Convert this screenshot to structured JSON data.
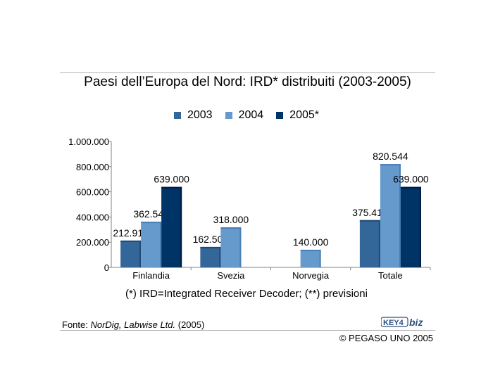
{
  "title": "Paesi dell’Europa del Nord: IRD* distribuiti (2003-2005)",
  "note": "(*) IRD=Integrated Receiver Decoder; (**) previsioni",
  "source": {
    "prefix": "Fonte: ",
    "italic": "NorDig, Labwise Ltd.",
    "suffix": " (2005)"
  },
  "logo_text": "KEY4biz",
  "copyright": "© PEGASO UNO 2005",
  "colors": {
    "s2003": "#336699",
    "s2004": "#6699cc",
    "s2005": "#003366",
    "axis": "#808080",
    "rule": "#b3b3b3"
  },
  "chart_data": {
    "type": "bar",
    "title": "Paesi dell’Europa del Nord: IRD* distribuiti (2003-2005)",
    "categories": [
      "Finlandia",
      "Svezia",
      "Norvegia",
      "Totale"
    ],
    "series": [
      {
        "name": "2003",
        "values": [
          212917,
          162500,
          null,
          375417
        ],
        "labels": [
          "212.917",
          "162.500",
          "",
          "375.417"
        ]
      },
      {
        "name": "2004",
        "values": [
          362544,
          318000,
          140000,
          820544
        ],
        "labels": [
          "362.544",
          "318.000",
          "140.000",
          "820.544"
        ]
      },
      {
        "name": "2005*",
        "values": [
          639000,
          null,
          null,
          639000
        ],
        "labels": [
          "639.000",
          "",
          "",
          "639.000"
        ]
      }
    ],
    "ylim": [
      0,
      1000000
    ],
    "yticks": [
      0,
      200000,
      400000,
      600000,
      800000,
      1000000
    ],
    "ytick_labels": [
      "0",
      "200.000",
      "400.000",
      "600.000",
      "800.000",
      "1.000.000"
    ],
    "legend_position": "top-center",
    "grid": false
  }
}
